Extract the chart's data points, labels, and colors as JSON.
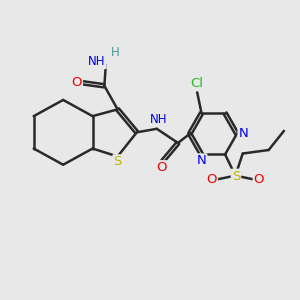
{
  "bg_color": "#e8e8e8",
  "bond_color": "#2a2a2a",
  "bond_width": 1.8,
  "dbo": 0.055,
  "atom_colors": {
    "C": "#2a2a2a",
    "N": "#0000ee",
    "O": "#ee0000",
    "S_thio": "#bbbb00",
    "S_sulf": "#bbbb00",
    "Cl": "#22bb22",
    "H": "#4a9999",
    "NH": "#0000ee"
  },
  "font_size": 9.5
}
